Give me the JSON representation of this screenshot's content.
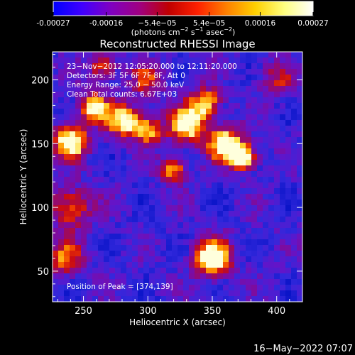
{
  "colorbar": {
    "tick_labels": [
      "-0.00027",
      "-0.00016",
      "−5.4e−05",
      "5.4e−05",
      "0.00016",
      "0.00027"
    ],
    "tick_values": [
      -0.00027,
      -0.00016,
      -5.4e-05,
      5.4e-05,
      0.00016,
      0.00027
    ],
    "range": [
      -0.00027,
      0.00027
    ],
    "unit_label": {
      "prefix": "(photons cm",
      "exp1": "−2",
      "mid1": " s",
      "exp2": "−1",
      "mid2": " asec",
      "exp3": "−2",
      "suffix": ")"
    },
    "colors": [
      "#0000ff",
      "#4000ff",
      "#8000c0",
      "#a00080",
      "#c00000",
      "#ff2000",
      "#ff8000",
      "#ffd000",
      "#ffff80",
      "#ffffff"
    ]
  },
  "chart_data": {
    "type": "heatmap",
    "title": "Reconstructed RHESSI Image",
    "xlabel": "Heliocentric X (arcsec)",
    "ylabel": "Heliocentric Y (arcsec)",
    "xlim": [
      226,
      420
    ],
    "ylim": [
      26,
      222
    ],
    "x_ticks": [
      250,
      300,
      350,
      400
    ],
    "y_ticks": [
      50,
      100,
      150,
      200
    ],
    "peak": [
      374,
      139
    ],
    "sources": [
      {
        "x": 240,
        "y": 152,
        "amp": 1.0,
        "sigma": 9
      },
      {
        "x": 258,
        "y": 178,
        "amp": 0.8,
        "sigma": 8
      },
      {
        "x": 282,
        "y": 168,
        "amp": 0.85,
        "sigma": 9
      },
      {
        "x": 300,
        "y": 160,
        "amp": 0.7,
        "sigma": 7
      },
      {
        "x": 330,
        "y": 165,
        "amp": 0.9,
        "sigma": 10
      },
      {
        "x": 345,
        "y": 182,
        "amp": 0.75,
        "sigma": 8
      },
      {
        "x": 360,
        "y": 150,
        "amp": 0.95,
        "sigma": 9
      },
      {
        "x": 374,
        "y": 139,
        "amp": 1.0,
        "sigma": 7
      },
      {
        "x": 320,
        "y": 130,
        "amp": 0.7,
        "sigma": 7
      },
      {
        "x": 350,
        "y": 60,
        "amp": 0.95,
        "sigma": 10
      },
      {
        "x": 240,
        "y": 100,
        "amp": 0.55,
        "sigma": 12
      },
      {
        "x": 235,
        "y": 60,
        "amp": 0.5,
        "sigma": 10
      },
      {
        "x": 300,
        "y": 200,
        "amp": 0.45,
        "sigma": 9
      },
      {
        "x": 265,
        "y": 210,
        "amp": 0.5,
        "sigma": 8
      },
      {
        "x": 400,
        "y": 200,
        "amp": 0.35,
        "sigma": 10
      }
    ]
  },
  "overlay": {
    "line1": "23−Nov−2012 12:05:20.000 to 12:11:20.000",
    "line2": "Detectors: 3F 5F 6F 7F 8F, Att 0",
    "line3": "Energy Range: 25.0 − 50.0 keV",
    "line4": "Clean    Total counts: 6.67E+03",
    "peak_label": "Position of Peak = [374,139]"
  },
  "timestamp": "16−May−2022 07:07"
}
